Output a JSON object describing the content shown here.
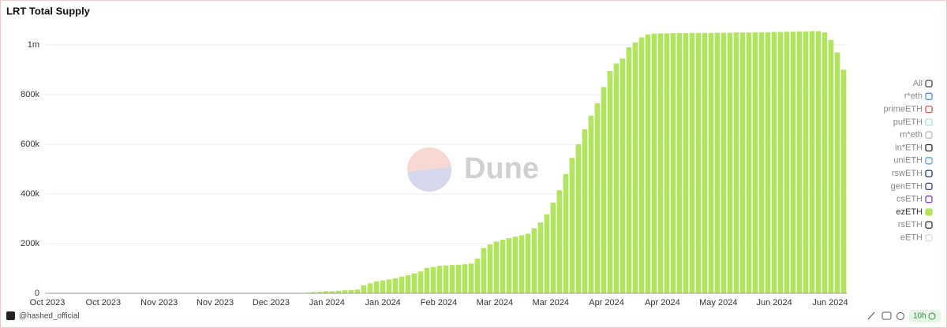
{
  "chart_data": {
    "type": "bar",
    "title": "LRT Total Supply",
    "watermark": "Dune",
    "color": "#b3e55c",
    "values": [
      0,
      0,
      0,
      0,
      0,
      0,
      0,
      0,
      0,
      0,
      0,
      0,
      0,
      0,
      0,
      0,
      0,
      0,
      0,
      0,
      0,
      0,
      0,
      0,
      0,
      0,
      0,
      0,
      0,
      0,
      0,
      0,
      0,
      0,
      0,
      0,
      0,
      0,
      0,
      1000,
      2000,
      3000,
      5000,
      6000,
      8000,
      8000,
      10000,
      12000,
      13000,
      15000,
      32000,
      40000,
      48000,
      52000,
      56000,
      60000,
      67000,
      73000,
      80000,
      88000,
      102000,
      106000,
      110000,
      112000,
      114000,
      115000,
      117000,
      120000,
      140000,
      182000,
      197000,
      208000,
      216000,
      222000,
      228000,
      234000,
      240000,
      262000,
      285000,
      318000,
      365000,
      415000,
      480000,
      545000,
      600000,
      660000,
      715000,
      765000,
      830000,
      895000,
      925000,
      945000,
      990000,
      1010000,
      1030000,
      1042000,
      1045000,
      1046000,
      1046000,
      1047000,
      1047000,
      1047000,
      1048000,
      1048000,
      1048000,
      1048000,
      1049000,
      1049000,
      1049000,
      1050000,
      1050000,
      1050000,
      1051000,
      1051000,
      1051000,
      1052000,
      1052000,
      1053000,
      1053000,
      1054000,
      1054000,
      1055000,
      1055000,
      1050000,
      1020000,
      970000,
      900000
    ],
    "xtick_labels": [
      "Oct 2023",
      "Oct 2023",
      "Nov 2023",
      "Nov 2023",
      "Dec 2023",
      "Jan 2024",
      "Jan 2024",
      "Feb 2024",
      "Mar 2024",
      "Mar 2024",
      "Apr 2024",
      "Apr 2024",
      "May 2024",
      "Jun 2024",
      "Jun 2024"
    ],
    "ylim": [
      0,
      1060000
    ],
    "yticks": [
      0,
      {
        "value": 200000,
        "label": "200k"
      },
      {
        "value": 400000,
        "label": "400k"
      },
      {
        "value": 600000,
        "label": "600k"
      },
      {
        "value": 800000,
        "label": "800k"
      },
      {
        "value": 1000000,
        "label": "1m"
      }
    ],
    "grid": true,
    "legend": [
      {
        "name": "All",
        "color": "#444",
        "selected": false
      },
      {
        "name": "r*eth",
        "color": "#4a90d9",
        "selected": false
      },
      {
        "name": "primeETH",
        "color": "#d9534f",
        "selected": false
      },
      {
        "name": "pufETH",
        "color": "#a8e0e8",
        "selected": false
      },
      {
        "name": "m*eth",
        "color": "#bbbbbb",
        "selected": false
      },
      {
        "name": "in*ETH",
        "color": "#222222",
        "selected": false
      },
      {
        "name": "uniETH",
        "color": "#5aa9e6",
        "selected": false
      },
      {
        "name": "rswETH",
        "color": "#1f3a6e",
        "selected": false
      },
      {
        "name": "genETH",
        "color": "#3b4a8a",
        "selected": false
      },
      {
        "name": "csETH",
        "color": "#7b3fb5",
        "selected": false
      },
      {
        "name": "ezETH",
        "color": "#b3e55c",
        "selected": true
      },
      {
        "name": "rsETH",
        "color": "#2b3a3a",
        "selected": false
      },
      {
        "name": "eETH",
        "color": "#dddddd",
        "selected": false
      }
    ],
    "footer": {
      "author": "@hashed_official",
      "refresh": "10h"
    }
  }
}
